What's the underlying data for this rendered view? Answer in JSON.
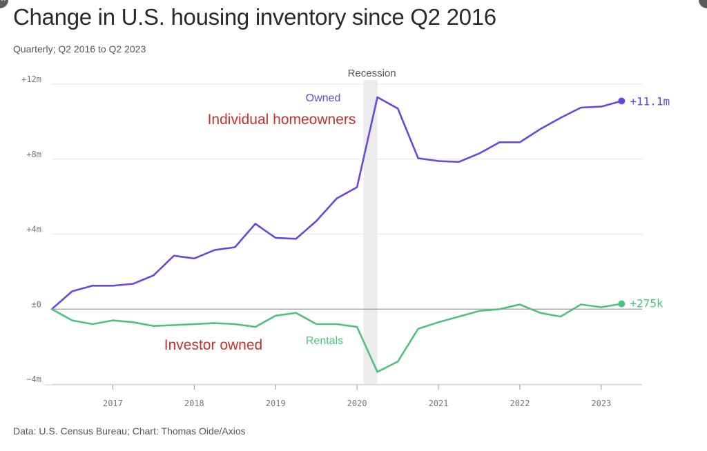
{
  "page": {
    "title": "Change in U.S. housing inventory since Q2 2016",
    "subtitle": "Quarterly; Q2 2016 to Q2 2023",
    "source": "Data: U.S. Census Bureau; Chart: Thomas Oide/Axios"
  },
  "chart_data": {
    "type": "line",
    "title": "Change in U.S. housing inventory since Q2 2016",
    "xlabel": "",
    "ylabel": "",
    "ylim": [
      -4,
      12
    ],
    "xlim": [
      2016.25,
      2023.4
    ],
    "yticks": [
      {
        "value": 12,
        "label": "+12m"
      },
      {
        "value": 8,
        "label": "+8m"
      },
      {
        "value": 4,
        "label": "+4m"
      },
      {
        "value": 0,
        "label": "±0"
      },
      {
        "value": -4,
        "label": "−4m"
      }
    ],
    "xticks": [
      {
        "value": 2017,
        "label": "2017"
      },
      {
        "value": 2018,
        "label": "2018"
      },
      {
        "value": 2019,
        "label": "2019"
      },
      {
        "value": 2020,
        "label": "2020"
      },
      {
        "value": 2021,
        "label": "2021"
      },
      {
        "value": 2022,
        "label": "2022"
      },
      {
        "value": 2023,
        "label": "2023"
      }
    ],
    "recession": {
      "label": "Recession",
      "start": 2020.08,
      "end": 2020.25
    },
    "x": [
      2016.25,
      2016.5,
      2016.75,
      2017.0,
      2017.25,
      2017.5,
      2017.75,
      2018.0,
      2018.25,
      2018.5,
      2018.75,
      2019.0,
      2019.25,
      2019.5,
      2019.75,
      2020.0,
      2020.25,
      2020.5,
      2020.75,
      2021.0,
      2021.25,
      2021.5,
      2021.75,
      2022.0,
      2022.25,
      2022.5,
      2022.75,
      2023.0,
      2023.25
    ],
    "series": [
      {
        "name": "Owned",
        "color": "#6a45e0",
        "end_label": "+11.1m",
        "values": [
          0.0,
          0.95,
          1.25,
          1.25,
          1.35,
          1.8,
          2.85,
          2.7,
          3.15,
          3.3,
          4.55,
          3.8,
          3.75,
          4.7,
          5.9,
          6.5,
          11.3,
          10.7,
          8.05,
          7.9,
          7.85,
          8.3,
          8.9,
          8.9,
          9.6,
          10.2,
          10.75,
          10.8,
          11.1
        ]
      },
      {
        "name": "Rentals",
        "color": "#4cc27e",
        "end_label": "+275k",
        "values": [
          0.0,
          -0.6,
          -0.8,
          -0.6,
          -0.7,
          -0.9,
          -0.85,
          -0.8,
          -0.75,
          -0.8,
          -0.95,
          -0.35,
          -0.2,
          -0.8,
          -0.8,
          -0.95,
          -3.35,
          -2.8,
          -1.05,
          -0.7,
          -0.4,
          -0.1,
          0.0,
          0.25,
          -0.2,
          -0.4,
          0.25,
          0.1,
          0.28
        ]
      }
    ],
    "annotations": [
      {
        "text": "Owned",
        "color": "#6a45e0"
      },
      {
        "text": "Rentals",
        "color": "#4cc27e"
      },
      {
        "text": "Individual homeowners",
        "color": "#c8302a"
      },
      {
        "text": "Investor owned",
        "color": "#c8302a"
      }
    ]
  }
}
